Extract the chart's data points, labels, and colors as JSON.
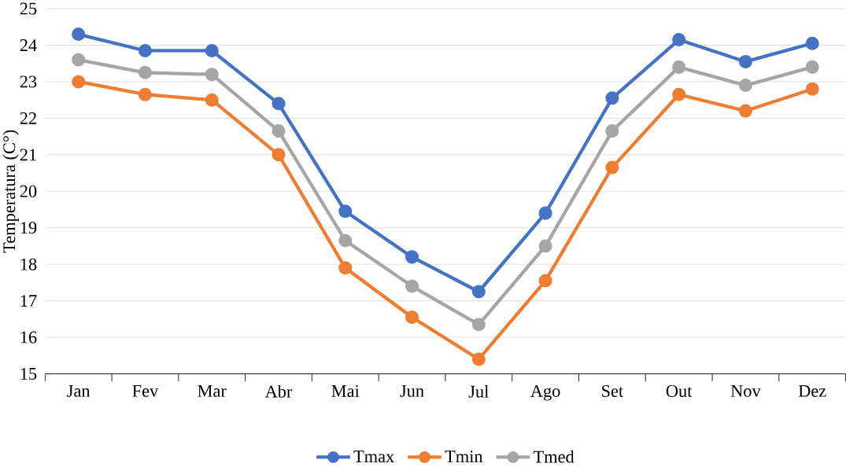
{
  "chart_data": {
    "type": "line",
    "ylabel": "Temperatura (C°)",
    "categories": [
      "Jan",
      "Fev",
      "Mar",
      "Abr",
      "Mai",
      "Jun",
      "Jul",
      "Ago",
      "Set",
      "Out",
      "Nov",
      "Dez"
    ],
    "series": [
      {
        "name": "Tmax",
        "color": "#4472c4",
        "values": [
          24.3,
          23.85,
          23.85,
          22.4,
          19.45,
          18.2,
          17.25,
          19.4,
          22.55,
          24.15,
          23.55,
          24.05
        ]
      },
      {
        "name": "Tmin",
        "color": "#ed7d31",
        "values": [
          23.0,
          22.65,
          22.5,
          21.0,
          17.9,
          16.55,
          15.4,
          17.55,
          20.65,
          22.65,
          22.2,
          22.8
        ]
      },
      {
        "name": "Tmed",
        "color": "#a5a5a5",
        "values": [
          23.6,
          23.25,
          23.2,
          21.65,
          18.65,
          17.4,
          16.35,
          18.5,
          21.65,
          23.4,
          22.9,
          23.4
        ]
      }
    ],
    "ylim": [
      15,
      25
    ],
    "yticks": [
      15,
      16,
      17,
      18,
      19,
      20,
      21,
      22,
      23,
      24,
      25
    ],
    "grid": "y",
    "legend": "bottom",
    "marker": "circle",
    "line_style": "solid"
  }
}
